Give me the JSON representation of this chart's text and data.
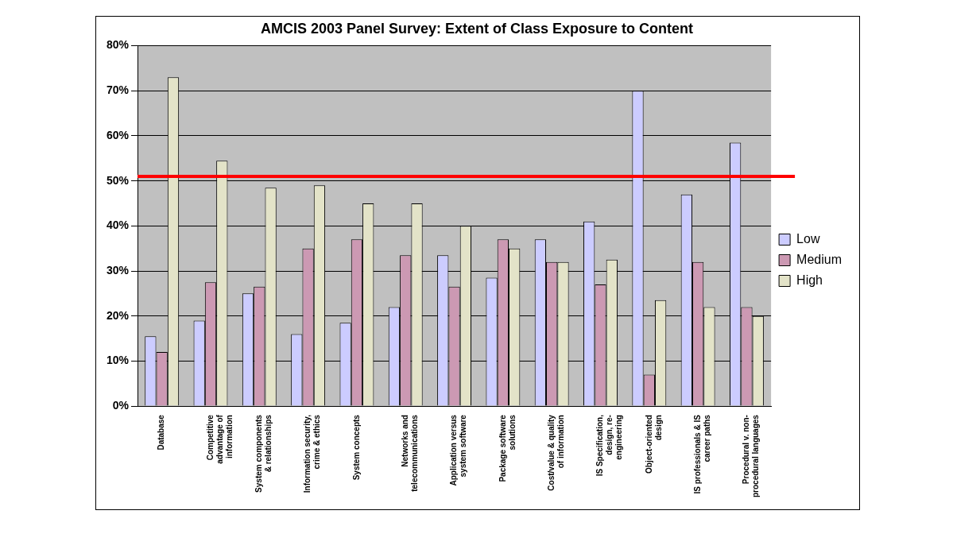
{
  "chart_data": {
    "type": "bar",
    "title": "AMCIS 2003 Panel Survey: Extent of Class Exposure to Content",
    "categories": [
      "Database",
      "Competitive\nadvantage of\ninformation",
      "System components\n& relationships",
      "Information security,\ncrime & ethics",
      "System concepts",
      "Networks and\ntelecommunications",
      "Application versus\nsystem software",
      "Package software\nsolutions",
      "Cost/value & quality\nof information",
      "IS Specification,\ndesign, re-\nengineering",
      "Object-oriented\ndesign",
      "IS professionals & IS\ncareer paths",
      "Procedural v. non-\nprocedural languages"
    ],
    "series": [
      {
        "name": "Low",
        "color": "#ccccff",
        "values": [
          15.5,
          19,
          25,
          16,
          18.5,
          22,
          33.5,
          28.5,
          37,
          41,
          70,
          47,
          58.5
        ]
      },
      {
        "name": "Medium",
        "color": "#cc99b3",
        "values": [
          12,
          27.5,
          26.5,
          35,
          37,
          33.5,
          26.5,
          37,
          32,
          27,
          7,
          32,
          22
        ]
      },
      {
        "name": "High",
        "color": "#e3e3c8",
        "values": [
          73,
          54.5,
          48.5,
          49,
          45,
          45,
          40,
          35,
          32,
          32.5,
          23.5,
          22,
          20
        ]
      }
    ],
    "ylim": [
      0,
      80
    ],
    "yticks": [
      {
        "value": 0,
        "label": "0%"
      },
      {
        "value": 10,
        "label": "10%"
      },
      {
        "value": 20,
        "label": "20%"
      },
      {
        "value": 30,
        "label": "30%"
      },
      {
        "value": 40,
        "label": "40%"
      },
      {
        "value": 50,
        "label": "50%"
      },
      {
        "value": 60,
        "label": "60%"
      },
      {
        "value": 70,
        "label": "70%"
      },
      {
        "value": 80,
        "label": "80%"
      }
    ],
    "ref_lines": [
      {
        "axis": "y",
        "value": 51,
        "color": "#ff0000",
        "line_style": "solid"
      }
    ],
    "grid": "y",
    "legend": "right"
  }
}
